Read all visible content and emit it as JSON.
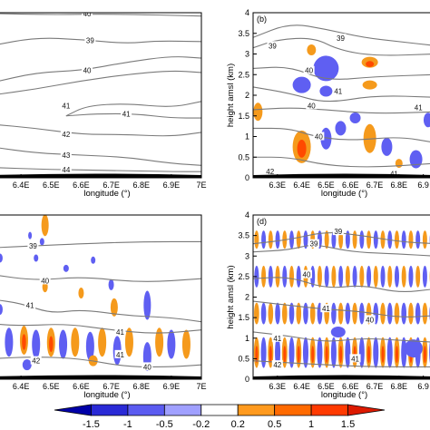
{
  "chart_data": [
    {
      "panel": "a",
      "type": "contour",
      "label": "",
      "xlabel": "longitude (°)",
      "ylabel": "",
      "xticks": [
        "6.4E",
        "6.5E",
        "6.6E",
        "6.7E",
        "6.8E",
        "6.9E",
        "7E"
      ],
      "xlim": [
        6.3,
        7.0
      ],
      "ylim": [
        0,
        4
      ],
      "contour_labels": [
        "40",
        "39",
        "40",
        "41",
        "41",
        "42",
        "43",
        "44"
      ]
    },
    {
      "panel": "b",
      "type": "contour",
      "label": "(b)",
      "xlabel": "longitude (°)",
      "ylabel": "height amsl (km)",
      "xticks": [
        "6.3E",
        "6.4E",
        "6.5E",
        "6.6E",
        "6.7E",
        "6.8E",
        "6.9"
      ],
      "yticks": [
        "0",
        "0.5",
        "1",
        "1.5",
        "2",
        "2.5",
        "3",
        "3.5",
        "4"
      ],
      "xlim": [
        6.2,
        6.95
      ],
      "ylim": [
        0,
        4
      ],
      "contour_labels": [
        "39",
        "39",
        "40",
        "41",
        "41",
        "40",
        "40",
        "42",
        "41"
      ]
    },
    {
      "panel": "c",
      "type": "contour",
      "label": "",
      "xlabel": "longitude (°)",
      "ylabel": "",
      "xticks": [
        "6.4E",
        "6.5E",
        "6.6E",
        "6.7E",
        "6.8E",
        "6.9E",
        "7E"
      ],
      "xlim": [
        6.3,
        7.0
      ],
      "ylim": [
        0,
        4
      ],
      "contour_labels": [
        "39",
        "40",
        "41",
        "41",
        "41",
        "42",
        "40"
      ]
    },
    {
      "panel": "d",
      "type": "contour",
      "label": "(d)",
      "xlabel": "longitude (°)",
      "ylabel": "height amsl (km)",
      "xticks": [
        "6.3E",
        "6.4E",
        "6.5E",
        "6.6E",
        "6.7E",
        "6.8E",
        "6.9"
      ],
      "yticks": [
        "0",
        "0.5",
        "1",
        "1.5",
        "2",
        "2.5",
        "3",
        "3.5",
        "4"
      ],
      "xlim": [
        6.2,
        6.95
      ],
      "ylim": [
        0,
        4
      ],
      "contour_labels": [
        "39",
        "39",
        "40",
        "41",
        "40",
        "41",
        "42",
        "41"
      ]
    }
  ],
  "colorbar": {
    "tick_labels": [
      "-1.5",
      "-1",
      "-0.5",
      "-0.2",
      "0.2",
      "0.5",
      "1",
      "1.5"
    ],
    "colors": [
      "#0000a8",
      "#2a2ad6",
      "#5b5bf0",
      "#a0a0ff",
      "#ffffff",
      "#ff9a1e",
      "#ff6a00",
      "#ff3a00",
      "#dd1a00"
    ]
  },
  "colors": {
    "blue": "#5f5ff2",
    "orange": "#f59a1c",
    "red": "#ff4a00",
    "contour": "#7a7a7a"
  }
}
